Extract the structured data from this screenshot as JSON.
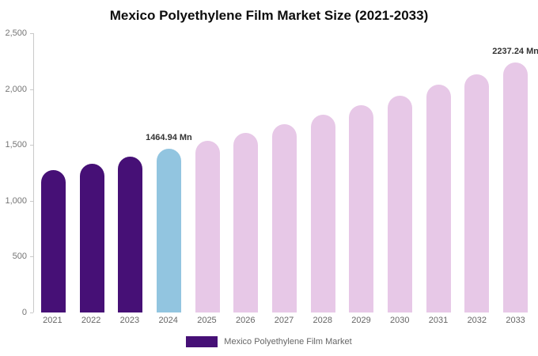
{
  "title": "Mexico Polyethylene Film Market Size (2021-2033)",
  "legend": {
    "label": "Mexico Polyethylene Film Market",
    "swatch_color": "#461076"
  },
  "chart_data": {
    "type": "bar",
    "title": "Mexico Polyethylene Film Market Size (2021-2033)",
    "xlabel": "",
    "ylabel": "",
    "categories": [
      "2021",
      "2022",
      "2023",
      "2024",
      "2025",
      "2026",
      "2027",
      "2028",
      "2029",
      "2030",
      "2031",
      "2032",
      "2033"
    ],
    "values": [
      1272,
      1333,
      1398,
      1464.94,
      1536,
      1610,
      1687,
      1768,
      1854,
      1943,
      2037,
      2135,
      2237.24
    ],
    "bar_roles": [
      "historical",
      "historical",
      "historical",
      "highlight",
      "forecast",
      "forecast",
      "forecast",
      "forecast",
      "forecast",
      "forecast",
      "forecast",
      "forecast",
      "forecast"
    ],
    "colors": {
      "historical": "#461076",
      "highlight": "#92c5e0",
      "forecast": "#e7c8e7"
    },
    "annotations": [
      {
        "category": "2024",
        "text": "1464.94 Mn"
      },
      {
        "category": "2033",
        "text": "2237.24 Mn"
      }
    ],
    "ylim": [
      0,
      2500
    ],
    "yticks_top_to_bottom": [
      "2,500",
      "2,000",
      "1,500",
      "1,000",
      "500",
      "0"
    ],
    "grid": false,
    "legend_position": "bottom"
  }
}
